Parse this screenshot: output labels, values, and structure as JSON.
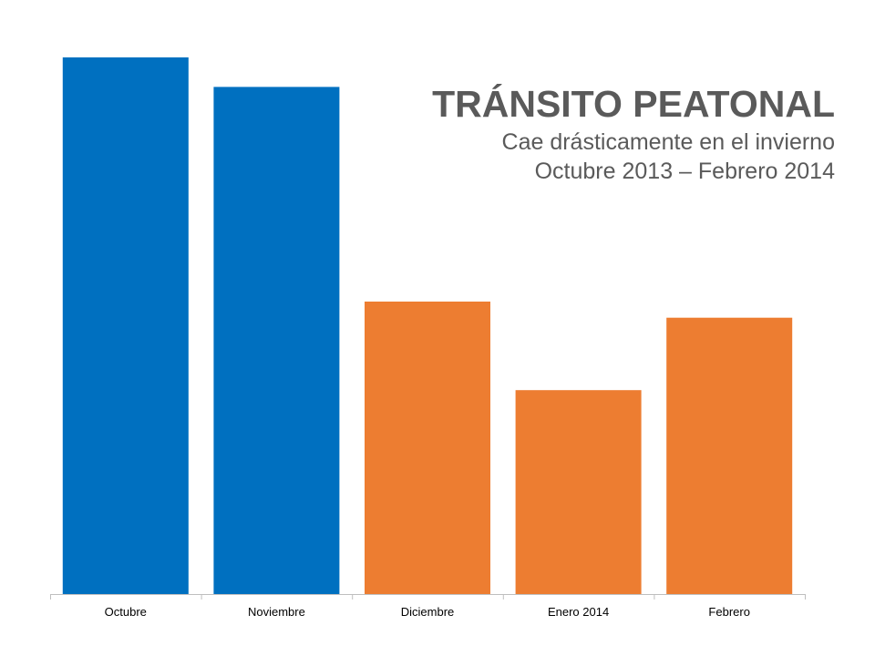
{
  "chart_data": {
    "type": "bar",
    "title": "TRÁNSITO PEATONAL",
    "subtitle": [
      "Cae drásticamente en el invierno",
      "Octubre 2013 – Febrero 2014"
    ],
    "categories": [
      "Octubre",
      "Noviembre",
      "Diciembre",
      "Enero 2014",
      "Febrero"
    ],
    "values": [
      100,
      94.5,
      54.5,
      38,
      51.5
    ],
    "ylim": [
      0,
      100
    ],
    "colors": [
      "#0070c0",
      "#0070c0",
      "#ed7d31",
      "#ed7d31",
      "#ed7d31"
    ],
    "grid": false,
    "legend": "none"
  }
}
